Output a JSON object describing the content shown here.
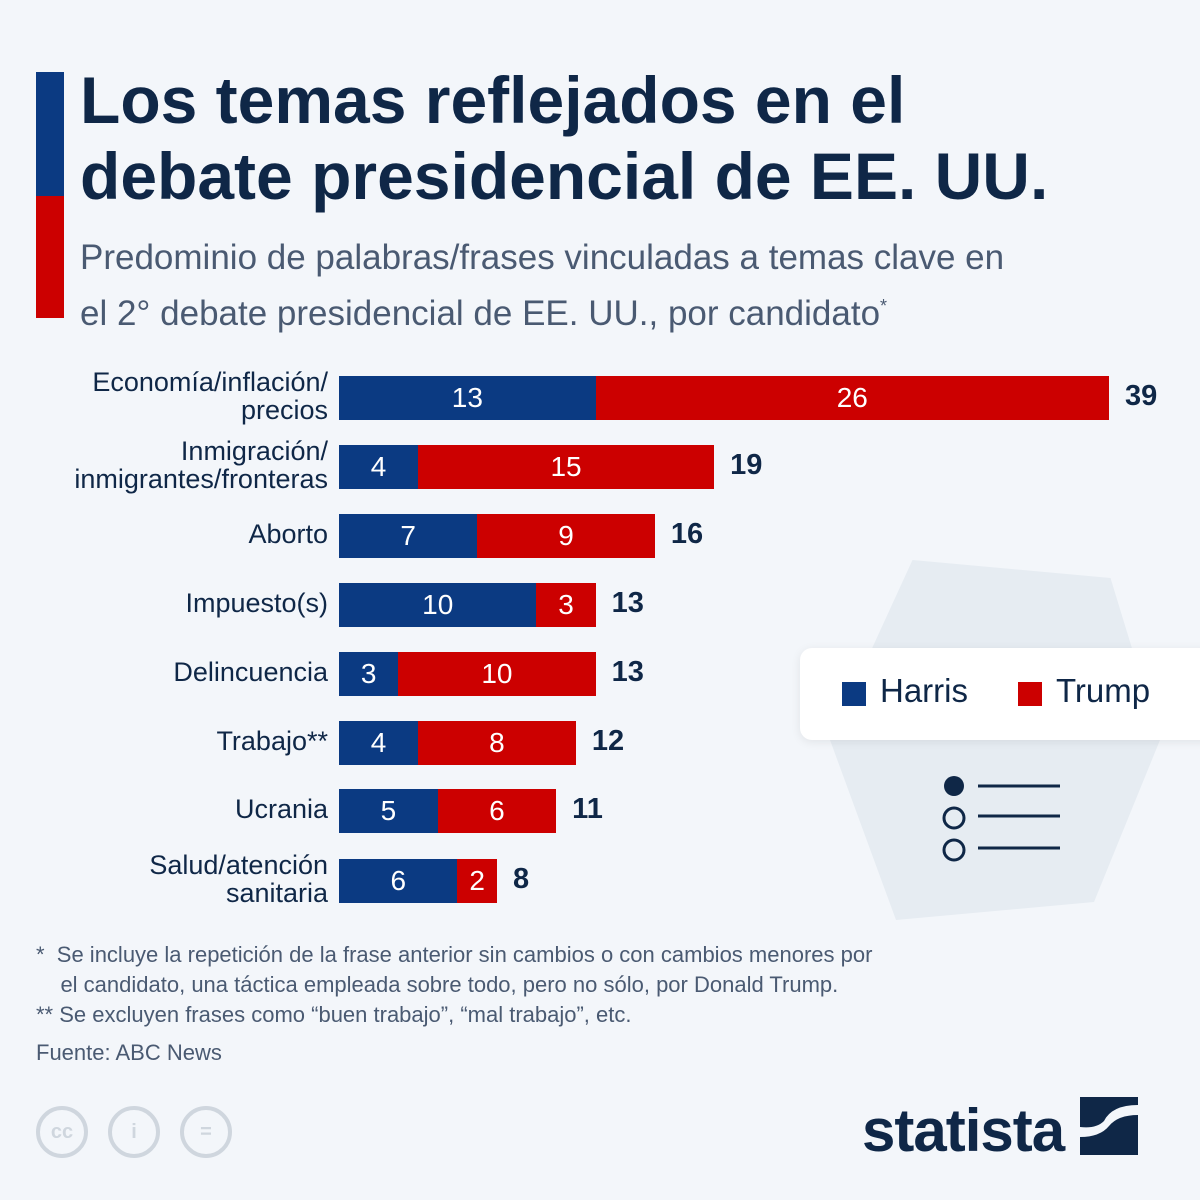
{
  "title": "Los temas reflejados en el debate presidencial de EE. UU.",
  "subtitle": "Predominio de palabras/frases vinculadas a temas clave en el 2° debate presidencial de EE. UU., por candidato",
  "subtitle_mark": "*",
  "colors": {
    "harris": "#0b3a82",
    "trump": "#cc0000"
  },
  "chart_data": {
    "type": "bar",
    "stacked": true,
    "orientation": "horizontal",
    "categories": [
      "Economía/inflación/ precios",
      "Inmigración/ inmigrantes/fronteras",
      "Aborto",
      "Impuesto(s)",
      "Delincuencia",
      "Trabajo**",
      "Ucrania",
      "Salud/atención sanitaria"
    ],
    "series": [
      {
        "name": "Harris",
        "values": [
          13,
          4,
          7,
          10,
          3,
          4,
          5,
          6
        ]
      },
      {
        "name": "Trump",
        "values": [
          26,
          15,
          9,
          3,
          10,
          8,
          6,
          2
        ]
      }
    ],
    "totals": [
      39,
      19,
      16,
      13,
      13,
      12,
      11,
      8
    ],
    "legend_position": "right"
  },
  "legend": {
    "harris": "Harris",
    "trump": "Trump"
  },
  "notes": [
    "*  Se incluye la repetición de la frase anterior sin cambios o con cambios menores por",
    "    el candidato, una táctica empleada sobre todo, pero no sólo, por Donald Trump.",
    "** Se excluyen frases como “buen trabajo”, “mal trabajo”, etc."
  ],
  "source": "Fuente: ABC News",
  "logo": "statista",
  "license_icons": [
    "cc",
    "by",
    "nd"
  ]
}
